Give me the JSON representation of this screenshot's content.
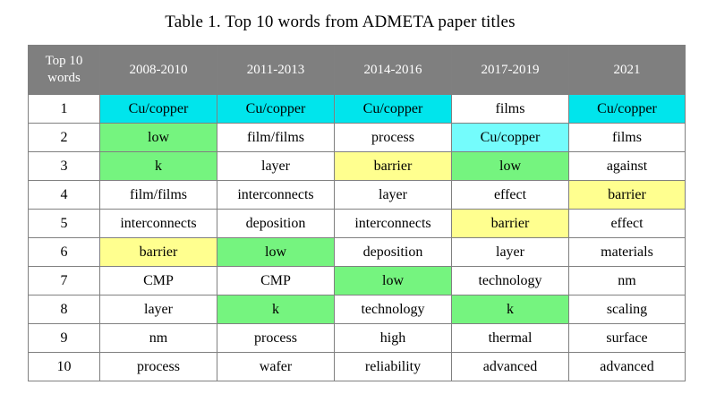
{
  "caption": "Table 1. Top 10 words from ADMETA paper titles",
  "table": {
    "header": {
      "rank_label": "Top 10 words",
      "periods": [
        "2008-2010",
        "2011-2013",
        "2014-2016",
        "2017-2019",
        "2021"
      ]
    },
    "highlight_colors": {
      "cyan": "#00e5ec",
      "light_cyan": "#74fcfc",
      "green": "#75f47f",
      "yellow": "#ffff8f"
    },
    "rows": [
      {
        "rank": "1",
        "cells": [
          {
            "text": "Cu/copper",
            "hl": "cyan"
          },
          {
            "text": "Cu/copper",
            "hl": "cyan"
          },
          {
            "text": "Cu/copper",
            "hl": "cyan"
          },
          {
            "text": "films",
            "hl": ""
          },
          {
            "text": "Cu/copper",
            "hl": "cyan"
          }
        ]
      },
      {
        "rank": "2",
        "cells": [
          {
            "text": "low",
            "hl": "green"
          },
          {
            "text": "film/films",
            "hl": ""
          },
          {
            "text": "process",
            "hl": ""
          },
          {
            "text": "Cu/copper",
            "hl": "lightcyan"
          },
          {
            "text": "films",
            "hl": ""
          }
        ]
      },
      {
        "rank": "3",
        "cells": [
          {
            "text": "k",
            "hl": "green"
          },
          {
            "text": "layer",
            "hl": ""
          },
          {
            "text": "barrier",
            "hl": "yellow"
          },
          {
            "text": "low",
            "hl": "green"
          },
          {
            "text": "against",
            "hl": ""
          }
        ]
      },
      {
        "rank": "4",
        "cells": [
          {
            "text": "film/films",
            "hl": ""
          },
          {
            "text": "interconnects",
            "hl": ""
          },
          {
            "text": "layer",
            "hl": ""
          },
          {
            "text": "effect",
            "hl": ""
          },
          {
            "text": "barrier",
            "hl": "yellow"
          }
        ]
      },
      {
        "rank": "5",
        "cells": [
          {
            "text": "interconnects",
            "hl": ""
          },
          {
            "text": "deposition",
            "hl": ""
          },
          {
            "text": "interconnects",
            "hl": ""
          },
          {
            "text": "barrier",
            "hl": "yellow"
          },
          {
            "text": "effect",
            "hl": ""
          }
        ]
      },
      {
        "rank": "6",
        "cells": [
          {
            "text": "barrier",
            "hl": "yellow"
          },
          {
            "text": "low",
            "hl": "green"
          },
          {
            "text": "deposition",
            "hl": ""
          },
          {
            "text": "layer",
            "hl": ""
          },
          {
            "text": "materials",
            "hl": ""
          }
        ]
      },
      {
        "rank": "7",
        "cells": [
          {
            "text": "CMP",
            "hl": ""
          },
          {
            "text": "CMP",
            "hl": ""
          },
          {
            "text": "low",
            "hl": "green"
          },
          {
            "text": "technology",
            "hl": ""
          },
          {
            "text": "nm",
            "hl": ""
          }
        ]
      },
      {
        "rank": "8",
        "cells": [
          {
            "text": "layer",
            "hl": ""
          },
          {
            "text": "k",
            "hl": "green"
          },
          {
            "text": "technology",
            "hl": ""
          },
          {
            "text": "k",
            "hl": "green"
          },
          {
            "text": "scaling",
            "hl": ""
          }
        ]
      },
      {
        "rank": "9",
        "cells": [
          {
            "text": "nm",
            "hl": ""
          },
          {
            "text": "process",
            "hl": ""
          },
          {
            "text": "high",
            "hl": ""
          },
          {
            "text": "thermal",
            "hl": ""
          },
          {
            "text": "surface",
            "hl": ""
          }
        ]
      },
      {
        "rank": "10",
        "cells": [
          {
            "text": "process",
            "hl": ""
          },
          {
            "text": "wafer",
            "hl": ""
          },
          {
            "text": "reliability",
            "hl": ""
          },
          {
            "text": "advanced",
            "hl": ""
          },
          {
            "text": "advanced",
            "hl": ""
          }
        ]
      }
    ]
  }
}
